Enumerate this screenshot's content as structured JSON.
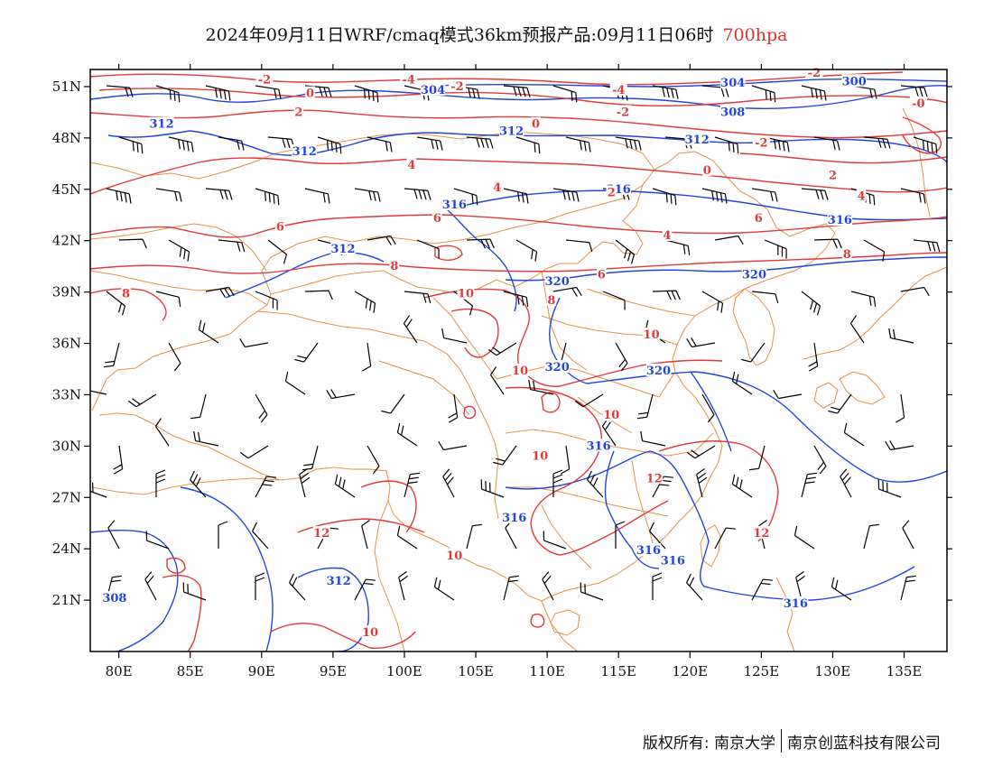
{
  "title": {
    "main": "2024年09月11日WRF/cmaq模式36km预报产品:09月11日06时",
    "level": "700hpa",
    "level_color": "#e03030"
  },
  "axes": {
    "lon_labels": [
      "80E",
      "85E",
      "90E",
      "95E",
      "100E",
      "105E",
      "110E",
      "115E",
      "120E",
      "125E",
      "130E",
      "135E"
    ],
    "lon_values": [
      80,
      85,
      90,
      95,
      100,
      105,
      110,
      115,
      120,
      125,
      130,
      135
    ],
    "lat_labels": [
      "21N",
      "24N",
      "27N",
      "30N",
      "33N",
      "36N",
      "39N",
      "42N",
      "45N",
      "48N",
      "51N"
    ],
    "lat_values": [
      21,
      24,
      27,
      30,
      33,
      36,
      39,
      42,
      45,
      48,
      51
    ],
    "lon_range": [
      78,
      138
    ],
    "lat_range": [
      18,
      52
    ]
  },
  "colors": {
    "height_contour": "#2244dd",
    "temperature_contour": "#e03a3a",
    "boundary": "#e0924a",
    "wind_barb": "#000000",
    "frame": "#000000"
  },
  "height_labels": [
    {
      "text": "304",
      "lon": 102,
      "lat": 50.8
    },
    {
      "text": "304",
      "lon": 123,
      "lat": 51.2
    },
    {
      "text": "300",
      "lon": 131.5,
      "lat": 51.3
    },
    {
      "text": "308",
      "lon": 123,
      "lat": 49.5
    },
    {
      "text": "312",
      "lon": 83,
      "lat": 48.8
    },
    {
      "text": "312",
      "lon": 93,
      "lat": 47.2
    },
    {
      "text": "312",
      "lon": 107.5,
      "lat": 48.4
    },
    {
      "text": "312",
      "lon": 120.5,
      "lat": 47.9
    },
    {
      "text": "316",
      "lon": 103.5,
      "lat": 44.1
    },
    {
      "text": "316",
      "lon": 115,
      "lat": 45.0
    },
    {
      "text": "316",
      "lon": 130.5,
      "lat": 43.2
    },
    {
      "text": "312",
      "lon": 95.7,
      "lat": 41.5
    },
    {
      "text": "320",
      "lon": 124.5,
      "lat": 40.0
    },
    {
      "text": "320",
      "lon": 110.7,
      "lat": 39.6
    },
    {
      "text": "320",
      "lon": 110.7,
      "lat": 34.6
    },
    {
      "text": "320",
      "lon": 117.8,
      "lat": 34.4
    },
    {
      "text": "316",
      "lon": 113.6,
      "lat": 30.0
    },
    {
      "text": "316",
      "lon": 107.7,
      "lat": 25.8
    },
    {
      "text": "316",
      "lon": 117.1,
      "lat": 23.9
    },
    {
      "text": "316",
      "lon": 118.8,
      "lat": 23.3
    },
    {
      "text": "312",
      "lon": 95.4,
      "lat": 22.1
    },
    {
      "text": "308",
      "lon": 79.7,
      "lat": 21.1
    },
    {
      "text": "316",
      "lon": 127.4,
      "lat": 20.8
    }
  ],
  "temp_labels": [
    {
      "text": "-2",
      "lon": 90.2,
      "lat": 51.4
    },
    {
      "text": "-4",
      "lon": 100.3,
      "lat": 51.4
    },
    {
      "text": "-2",
      "lon": 103.7,
      "lat": 51.0
    },
    {
      "text": "-4",
      "lon": 115.0,
      "lat": 50.8
    },
    {
      "text": "-2",
      "lon": 128.7,
      "lat": 51.8
    },
    {
      "text": "-0",
      "lon": 136.0,
      "lat": 50.0
    },
    {
      "text": "0",
      "lon": 93.4,
      "lat": 50.6
    },
    {
      "text": "2",
      "lon": 92.6,
      "lat": 49.5
    },
    {
      "text": "-2",
      "lon": 115.3,
      "lat": 49.5
    },
    {
      "text": "0",
      "lon": 109.2,
      "lat": 48.8
    },
    {
      "text": "-2",
      "lon": 125.0,
      "lat": 47.7
    },
    {
      "text": "4",
      "lon": 100.5,
      "lat": 46.4
    },
    {
      "text": "0",
      "lon": 121.2,
      "lat": 46.1
    },
    {
      "text": "2",
      "lon": 130.0,
      "lat": 45.8
    },
    {
      "text": "4",
      "lon": 106.5,
      "lat": 45.1
    },
    {
      "text": "2",
      "lon": 114.5,
      "lat": 44.8
    },
    {
      "text": "4",
      "lon": 132.0,
      "lat": 44.6
    },
    {
      "text": "6",
      "lon": 91.3,
      "lat": 42.8
    },
    {
      "text": "6",
      "lon": 102.3,
      "lat": 43.3
    },
    {
      "text": "6",
      "lon": 124.8,
      "lat": 43.3
    },
    {
      "text": "4",
      "lon": 118.4,
      "lat": 42.3
    },
    {
      "text": "8",
      "lon": 99.3,
      "lat": 40.5
    },
    {
      "text": "8",
      "lon": 131.0,
      "lat": 41.2
    },
    {
      "text": "6",
      "lon": 113.8,
      "lat": 40.0
    },
    {
      "text": "8",
      "lon": 80.5,
      "lat": 38.9
    },
    {
      "text": "10",
      "lon": 104.3,
      "lat": 38.9
    },
    {
      "text": "8",
      "lon": 110.3,
      "lat": 38.5
    },
    {
      "text": "10",
      "lon": 117.3,
      "lat": 36.5
    },
    {
      "text": "10",
      "lon": 108.1,
      "lat": 34.4
    },
    {
      "text": "10",
      "lon": 114.5,
      "lat": 31.8
    },
    {
      "text": "10",
      "lon": 109.5,
      "lat": 29.4
    },
    {
      "text": "12",
      "lon": 117.5,
      "lat": 28.1
    },
    {
      "text": "12",
      "lon": 94.2,
      "lat": 24.9
    },
    {
      "text": "12",
      "lon": 125.0,
      "lat": 24.9
    },
    {
      "text": "10",
      "lon": 103.5,
      "lat": 23.6
    },
    {
      "text": "10",
      "lon": 97.6,
      "lat": 19.1
    }
  ],
  "footer": {
    "left": "版权所有: 南京大学",
    "right": "南京创蓝科技有限公司"
  }
}
